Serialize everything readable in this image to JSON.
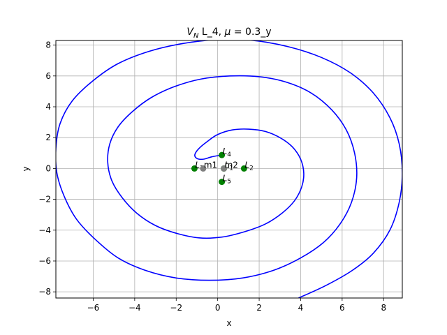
{
  "chart_data": {
    "type": "line",
    "title": {
      "prefix": "V",
      "prefix_sub": "N",
      "middle": " L_4, ",
      "mu_symbol": "μ",
      "suffix": " = 0.3_y"
    },
    "xlabel": "x",
    "ylabel": "y",
    "xlim": [
      -7.8,
      8.9
    ],
    "ylim": [
      -8.4,
      8.3
    ],
    "xticks": [
      -6,
      -4,
      -2,
      0,
      2,
      4,
      6,
      8
    ],
    "yticks": [
      -8,
      -6,
      -4,
      -2,
      0,
      2,
      4,
      6,
      8
    ],
    "grid": true,
    "series": [
      {
        "color": "#0000ff",
        "points": [
          [
            3.9,
            -8.4
          ],
          [
            5.2,
            -7.6
          ],
          [
            6.5,
            -6.6
          ],
          [
            7.5,
            -5.5
          ],
          [
            8.3,
            -4.0
          ],
          [
            8.75,
            -2.2
          ],
          [
            8.9,
            -0.3
          ],
          [
            8.75,
            1.6
          ],
          [
            8.3,
            3.3
          ],
          [
            7.5,
            4.9
          ],
          [
            6.4,
            6.2
          ],
          [
            5.0,
            7.2
          ],
          [
            3.4,
            7.9
          ],
          [
            1.7,
            8.3
          ],
          [
            0.0,
            8.35
          ],
          [
            -1.7,
            8.1
          ],
          [
            -3.3,
            7.6
          ],
          [
            -4.8,
            6.8
          ],
          [
            -6.0,
            5.7
          ],
          [
            -7.0,
            4.4
          ],
          [
            -7.6,
            2.9
          ],
          [
            -7.8,
            1.3
          ],
          [
            -7.75,
            -0.3
          ],
          [
            -7.4,
            -1.8
          ],
          [
            -6.8,
            -3.3
          ],
          [
            -5.9,
            -4.6
          ],
          [
            -4.8,
            -5.8
          ],
          [
            -3.5,
            -6.6
          ],
          [
            -2.0,
            -7.1
          ],
          [
            -0.4,
            -7.25
          ],
          [
            1.2,
            -7.1
          ],
          [
            2.7,
            -6.6
          ],
          [
            4.0,
            -5.8
          ],
          [
            5.1,
            -4.8
          ],
          [
            5.9,
            -3.6
          ],
          [
            6.45,
            -2.2
          ],
          [
            6.7,
            -0.6
          ],
          [
            6.6,
            1.0
          ],
          [
            6.2,
            2.5
          ],
          [
            5.5,
            3.8
          ],
          [
            4.5,
            4.9
          ],
          [
            3.3,
            5.6
          ],
          [
            2.0,
            5.95
          ],
          [
            0.6,
            6.0
          ],
          [
            -0.8,
            5.8
          ],
          [
            -2.1,
            5.3
          ],
          [
            -3.2,
            4.6
          ],
          [
            -4.1,
            3.7
          ],
          [
            -4.8,
            2.7
          ],
          [
            -5.2,
            1.6
          ],
          [
            -5.3,
            0.4
          ],
          [
            -5.1,
            -0.8
          ],
          [
            -4.6,
            -1.9
          ],
          [
            -3.9,
            -2.9
          ],
          [
            -3.0,
            -3.7
          ],
          [
            -2.0,
            -4.2
          ],
          [
            -0.9,
            -4.5
          ],
          [
            0.2,
            -4.45
          ],
          [
            1.3,
            -4.1
          ],
          [
            2.3,
            -3.6
          ],
          [
            3.1,
            -2.9
          ],
          [
            3.7,
            -2.1
          ],
          [
            4.05,
            -1.2
          ],
          [
            4.15,
            -0.3
          ],
          [
            4.0,
            0.6
          ],
          [
            3.6,
            1.4
          ],
          [
            3.0,
            2.0
          ],
          [
            2.3,
            2.4
          ],
          [
            1.5,
            2.55
          ],
          [
            0.7,
            2.5
          ],
          [
            0.0,
            2.2
          ],
          [
            -0.5,
            1.75
          ],
          [
            -0.9,
            1.3
          ],
          [
            -1.1,
            0.9
          ],
          [
            -1.0,
            0.65
          ],
          [
            -0.7,
            0.6
          ],
          [
            -0.3,
            0.75
          ],
          [
            0.1,
            0.85
          ]
        ]
      }
    ],
    "points": [
      {
        "name": "L",
        "sub": "4",
        "x": 0.2,
        "y": 0.87,
        "color": "#008000"
      },
      {
        "name": "L",
        "sub": "5",
        "x": 0.2,
        "y": -0.87,
        "color": "#008000"
      },
      {
        "name": "L",
        "sub": "3",
        "x": -1.12,
        "y": 0.0,
        "color": "#008000"
      },
      {
        "name": "L",
        "sub": "2",
        "x": 1.27,
        "y": 0.0,
        "color": "#008000"
      },
      {
        "name": "L",
        "sub": "1",
        "x": 0.3,
        "y": 0.0,
        "color": "#008000"
      },
      {
        "name": "m1",
        "sub": "",
        "x": -0.7,
        "y": 0.0,
        "color": "#808080"
      },
      {
        "name": "m2",
        "sub": "",
        "x": 0.3,
        "y": 0.0,
        "color": "#808080"
      }
    ]
  }
}
